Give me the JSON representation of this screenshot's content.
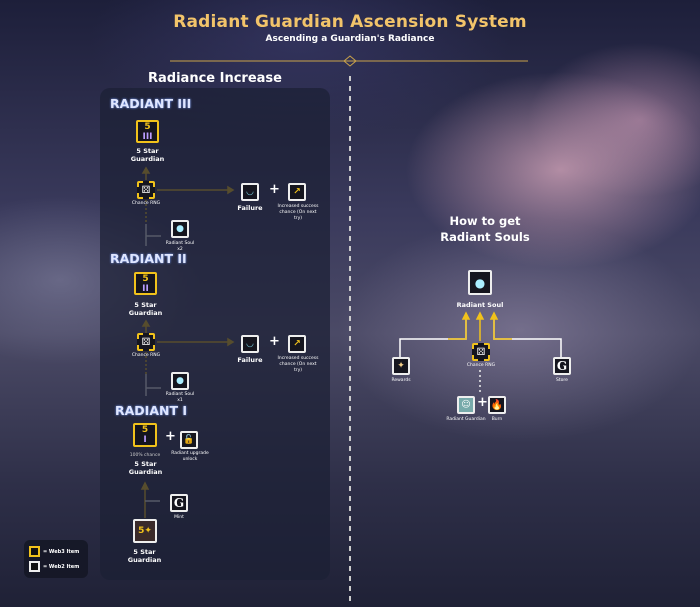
{
  "header": {
    "title": "Radiant Guardian Ascension System",
    "subtitle": "Ascending a Guardian's Radiance"
  },
  "left": {
    "section_title": "Radiance Increase",
    "tiers": [
      {
        "name": "RADIANT III",
        "result": "5 Star Guardian",
        "star_level": "5",
        "numeral": "III",
        "rng": "Chance RNG",
        "failure": "Failure",
        "bonus": "Increased success chance (On next try)",
        "consume": "Radiant Soul",
        "consume_qty": "x2"
      },
      {
        "name": "RADIANT II",
        "result": "5 Star Guardian",
        "star_level": "5",
        "numeral": "II",
        "rng": "Chance RNG",
        "failure": "Failure",
        "bonus": "Increased success chance (On next try)",
        "consume": "Radiant Soul",
        "consume_qty": "x1"
      },
      {
        "name": "RADIANT I",
        "result": "5 Star Guardian",
        "star_level": "5",
        "numeral": "I",
        "chance": "100% chance",
        "unlock": "Radiant upgrade unlock",
        "source": "Mint",
        "base": "5 Star Guardian"
      }
    ]
  },
  "right": {
    "section_title_line1": "How to get",
    "section_title_line2": "Radiant Souls",
    "target": "Radiant Soul",
    "sources": [
      "Rewards",
      "Chance RNG",
      "Store"
    ],
    "inputs": [
      "Radiant Guardian",
      "Burn"
    ]
  },
  "legend": {
    "web3": "= Web3 Item",
    "web2": "= Web2 Item"
  },
  "colors": {
    "accent": "#f1c21b",
    "title": "#f2c46a",
    "web2": "#eeeeee"
  }
}
